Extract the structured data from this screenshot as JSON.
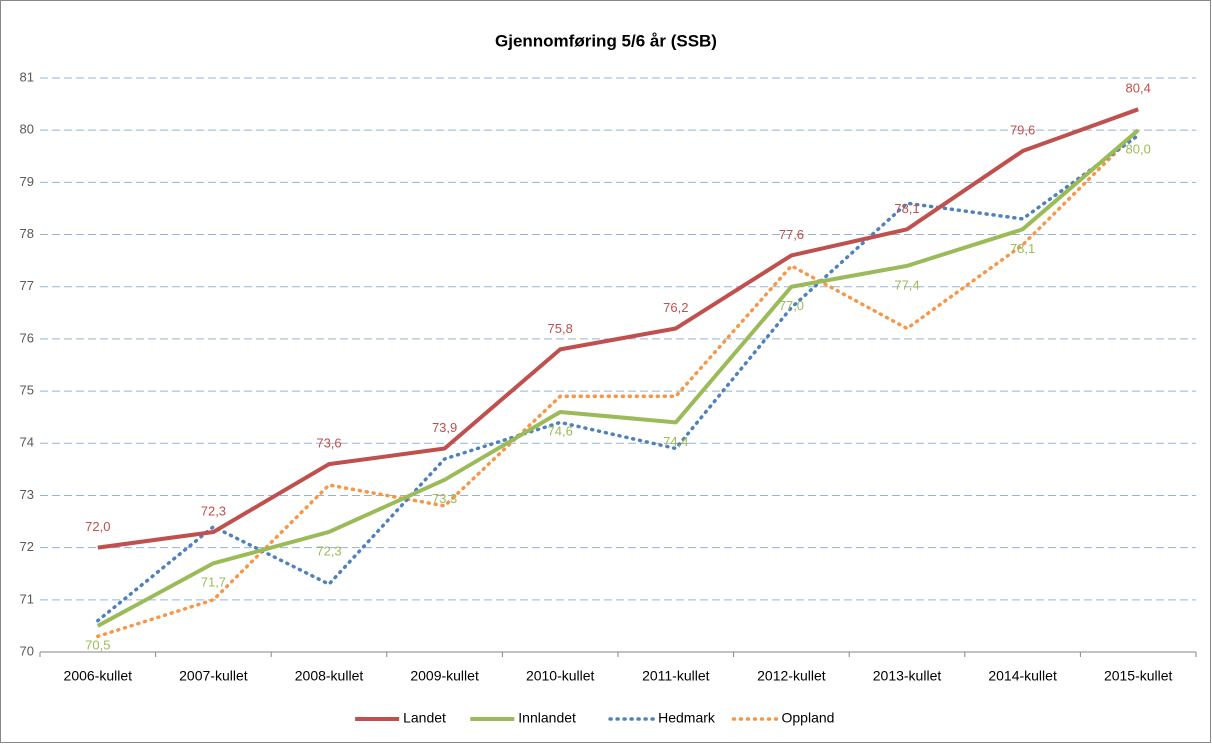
{
  "chart_data": {
    "type": "line",
    "title": "Gjennomføring 5/6 år (SSB)",
    "categories": [
      "2006-kullet",
      "2007-kullet",
      "2008-kullet",
      "2009-kullet",
      "2010-kullet",
      "2011-kullet",
      "2012-kullet",
      "2013-kullet",
      "2014-kullet",
      "2015-kullet"
    ],
    "series": [
      {
        "name": "Landet",
        "color": "#c0504d",
        "style": "solid",
        "values": [
          72.0,
          72.3,
          73.6,
          73.9,
          75.8,
          76.2,
          77.6,
          78.1,
          79.6,
          80.4
        ],
        "value_labels": [
          "72,0",
          "72,3",
          "73,6",
          "73,9",
          "75,8",
          "76,2",
          "77,6",
          "78,1",
          "79,6",
          "80,4"
        ],
        "label_position": "above"
      },
      {
        "name": "Innlandet",
        "color": "#9bbb59",
        "style": "solid",
        "values": [
          70.5,
          71.7,
          72.3,
          73.3,
          74.6,
          74.4,
          77.0,
          77.4,
          78.1,
          80.0
        ],
        "value_labels": [
          "70,5",
          "71,7",
          "72,3",
          "73,3",
          "74,6",
          "74,4",
          "77,0",
          "77,4",
          "78,1",
          "80,0"
        ],
        "label_position": "below"
      },
      {
        "name": "Hedmark",
        "color": "#4f81bd",
        "style": "dotted",
        "values": [
          70.6,
          72.4,
          71.3,
          73.7,
          74.4,
          73.9,
          76.6,
          78.6,
          78.3,
          79.9
        ]
      },
      {
        "name": "Oppland",
        "color": "#f79646",
        "style": "dotted",
        "values": [
          70.3,
          71.0,
          73.2,
          72.8,
          74.9,
          74.9,
          77.4,
          76.2,
          77.8,
          80.0
        ]
      }
    ],
    "ylim": [
      70,
      81
    ],
    "yticks": [
      70,
      71,
      72,
      73,
      74,
      75,
      76,
      77,
      78,
      79,
      80,
      81
    ],
    "grid": true,
    "legend": "bottom"
  }
}
